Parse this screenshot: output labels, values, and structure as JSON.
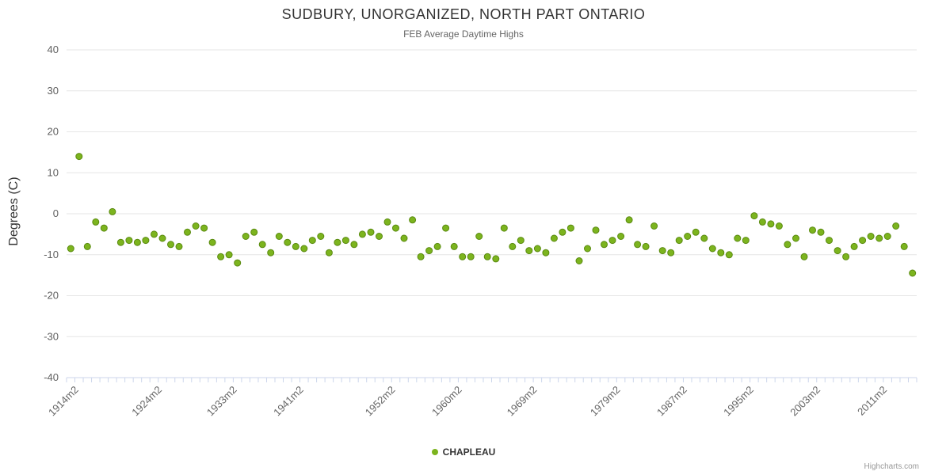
{
  "chart_data": {
    "type": "scatter",
    "title": "SUDBURY, UNORGANIZED, NORTH PART ONTARIO",
    "subtitle": "FEB Average Daytime Highs",
    "ylabel": "Degrees (C)",
    "xlabel": "",
    "ylim": [
      -40,
      40
    ],
    "ytick_step": 10,
    "ytick_labels": [
      "-40",
      "-30",
      "-20",
      "-10",
      "0",
      "10",
      "20",
      "30",
      "40"
    ],
    "grid": "horizontal-on",
    "legend_position": "bottom-center",
    "x_start_year": 1913,
    "x_suffix": "m2",
    "xtick_labels": [
      "1914m2",
      "1924m2",
      "1933m2",
      "1941m2",
      "1952m2",
      "1960m2",
      "1969m2",
      "1979m2",
      "1987m2",
      "1995m2",
      "2003m2",
      "2011m2"
    ],
    "series": [
      {
        "name": "CHAPLEAU",
        "color": "#7cb41e",
        "values": [
          -8.5,
          14,
          -8,
          -2,
          -3.5,
          0.5,
          -7,
          -6.5,
          -7,
          -6.5,
          -5,
          -6,
          -7.5,
          -8,
          -4.5,
          -3,
          -3.5,
          -7,
          -10.5,
          -10,
          -12,
          -5.5,
          -4.5,
          -7.5,
          -9.5,
          -5.5,
          -7,
          -8,
          -8.5,
          -6.5,
          -5.5,
          -9.5,
          -7,
          -6.5,
          -7.5,
          -5,
          -4.5,
          -5.5,
          -2,
          -3.5,
          -6,
          -1.5,
          -10.5,
          -9,
          -8,
          -3.5,
          -8,
          -10.5,
          -10.5,
          -5.5,
          -10.5,
          -11,
          -3.5,
          -8,
          -6.5,
          -9,
          -8.5,
          -9.5,
          -6,
          -4.5,
          -3.5,
          -11.5,
          -8.5,
          -4,
          -7.5,
          -6.5,
          -5.5,
          -1.5,
          -7.5,
          -8,
          -3,
          -9,
          -9.5,
          -6.5,
          -5.5,
          -4.5,
          -6,
          -8.5,
          -9.5,
          -10,
          -6,
          -6.5,
          -0.5,
          -2,
          -2.5,
          -3,
          -7.5,
          -6,
          -10.5,
          -4,
          -4.5,
          -6.5,
          -9,
          -10.5,
          -8,
          -6.5,
          -5.5,
          -6,
          -5.5,
          -3,
          -8,
          -14.5
        ]
      }
    ]
  },
  "legend": {
    "chapleau_label": "CHAPLEAU"
  },
  "credits": {
    "label": "Highcharts.com"
  },
  "colors": {
    "point_fill": "#7cb41e",
    "point_stroke": "#5a8a10",
    "gridline": "#e6e6e6",
    "axis_line": "#ccd6eb",
    "tick": "#ccd6eb",
    "axis_label": "#606060",
    "title": "#333333",
    "subtitle": "#666666"
  }
}
